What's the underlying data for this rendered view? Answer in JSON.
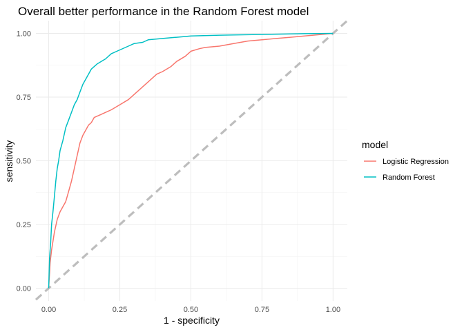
{
  "chart_data": {
    "type": "line",
    "title": "Overall better performance in the Random Forest model",
    "xlabel": "1 - specificity",
    "ylabel": "sensitivity",
    "xlim": [
      -0.045,
      1.05
    ],
    "ylim": [
      -0.05,
      1.05
    ],
    "grid": true,
    "x_ticks": [
      0.0,
      0.25,
      0.5,
      0.75,
      1.0
    ],
    "y_ticks": [
      0.0,
      0.25,
      0.5,
      0.75,
      1.0
    ],
    "x_tick_labels": [
      "0.00",
      "0.25",
      "0.50",
      "0.75",
      "1.00"
    ],
    "y_tick_labels": [
      "0.00",
      "0.25",
      "0.50",
      "0.75",
      "1.00"
    ],
    "legend": {
      "title": "model",
      "position": "right",
      "entries": [
        "Logistic Regression",
        "Random Forest"
      ]
    },
    "reference_line": {
      "x": [
        -0.05,
        1.05
      ],
      "y": [
        -0.05,
        1.05
      ],
      "color": "#bdbdbd",
      "style": "dashed"
    },
    "series": [
      {
        "name": "Logistic Regression",
        "color": "#F8766D",
        "x": [
          0.0,
          0.005,
          0.01,
          0.02,
          0.03,
          0.04,
          0.05,
          0.06,
          0.07,
          0.08,
          0.09,
          0.1,
          0.11,
          0.12,
          0.13,
          0.14,
          0.15,
          0.16,
          0.18,
          0.2,
          0.22,
          0.25,
          0.28,
          0.3,
          0.33,
          0.35,
          0.38,
          0.4,
          0.43,
          0.45,
          0.48,
          0.5,
          0.53,
          0.55,
          0.6,
          0.65,
          0.7,
          0.75,
          0.8,
          0.85,
          0.9,
          0.95,
          1.0
        ],
        "y": [
          0.0,
          0.1,
          0.15,
          0.22,
          0.27,
          0.3,
          0.32,
          0.34,
          0.38,
          0.42,
          0.47,
          0.52,
          0.57,
          0.6,
          0.62,
          0.64,
          0.65,
          0.67,
          0.68,
          0.69,
          0.7,
          0.72,
          0.74,
          0.76,
          0.79,
          0.81,
          0.84,
          0.85,
          0.87,
          0.89,
          0.91,
          0.93,
          0.94,
          0.945,
          0.95,
          0.96,
          0.97,
          0.975,
          0.98,
          0.985,
          0.99,
          0.995,
          1.0
        ]
      },
      {
        "name": "Random Forest",
        "color": "#00BFC4",
        "x": [
          0.0,
          0.003,
          0.007,
          0.01,
          0.015,
          0.02,
          0.025,
          0.03,
          0.035,
          0.04,
          0.05,
          0.06,
          0.07,
          0.08,
          0.09,
          0.1,
          0.11,
          0.12,
          0.13,
          0.14,
          0.15,
          0.17,
          0.2,
          0.22,
          0.25,
          0.28,
          0.3,
          0.33,
          0.35,
          0.4,
          0.45,
          0.5,
          0.6,
          0.7,
          0.8,
          0.9,
          1.0
        ],
        "y": [
          0.0,
          0.12,
          0.18,
          0.25,
          0.3,
          0.36,
          0.42,
          0.47,
          0.5,
          0.54,
          0.58,
          0.63,
          0.66,
          0.69,
          0.72,
          0.74,
          0.77,
          0.8,
          0.82,
          0.84,
          0.86,
          0.88,
          0.9,
          0.92,
          0.935,
          0.95,
          0.96,
          0.965,
          0.975,
          0.98,
          0.985,
          0.99,
          0.993,
          0.995,
          0.997,
          0.999,
          1.0
        ]
      }
    ]
  }
}
